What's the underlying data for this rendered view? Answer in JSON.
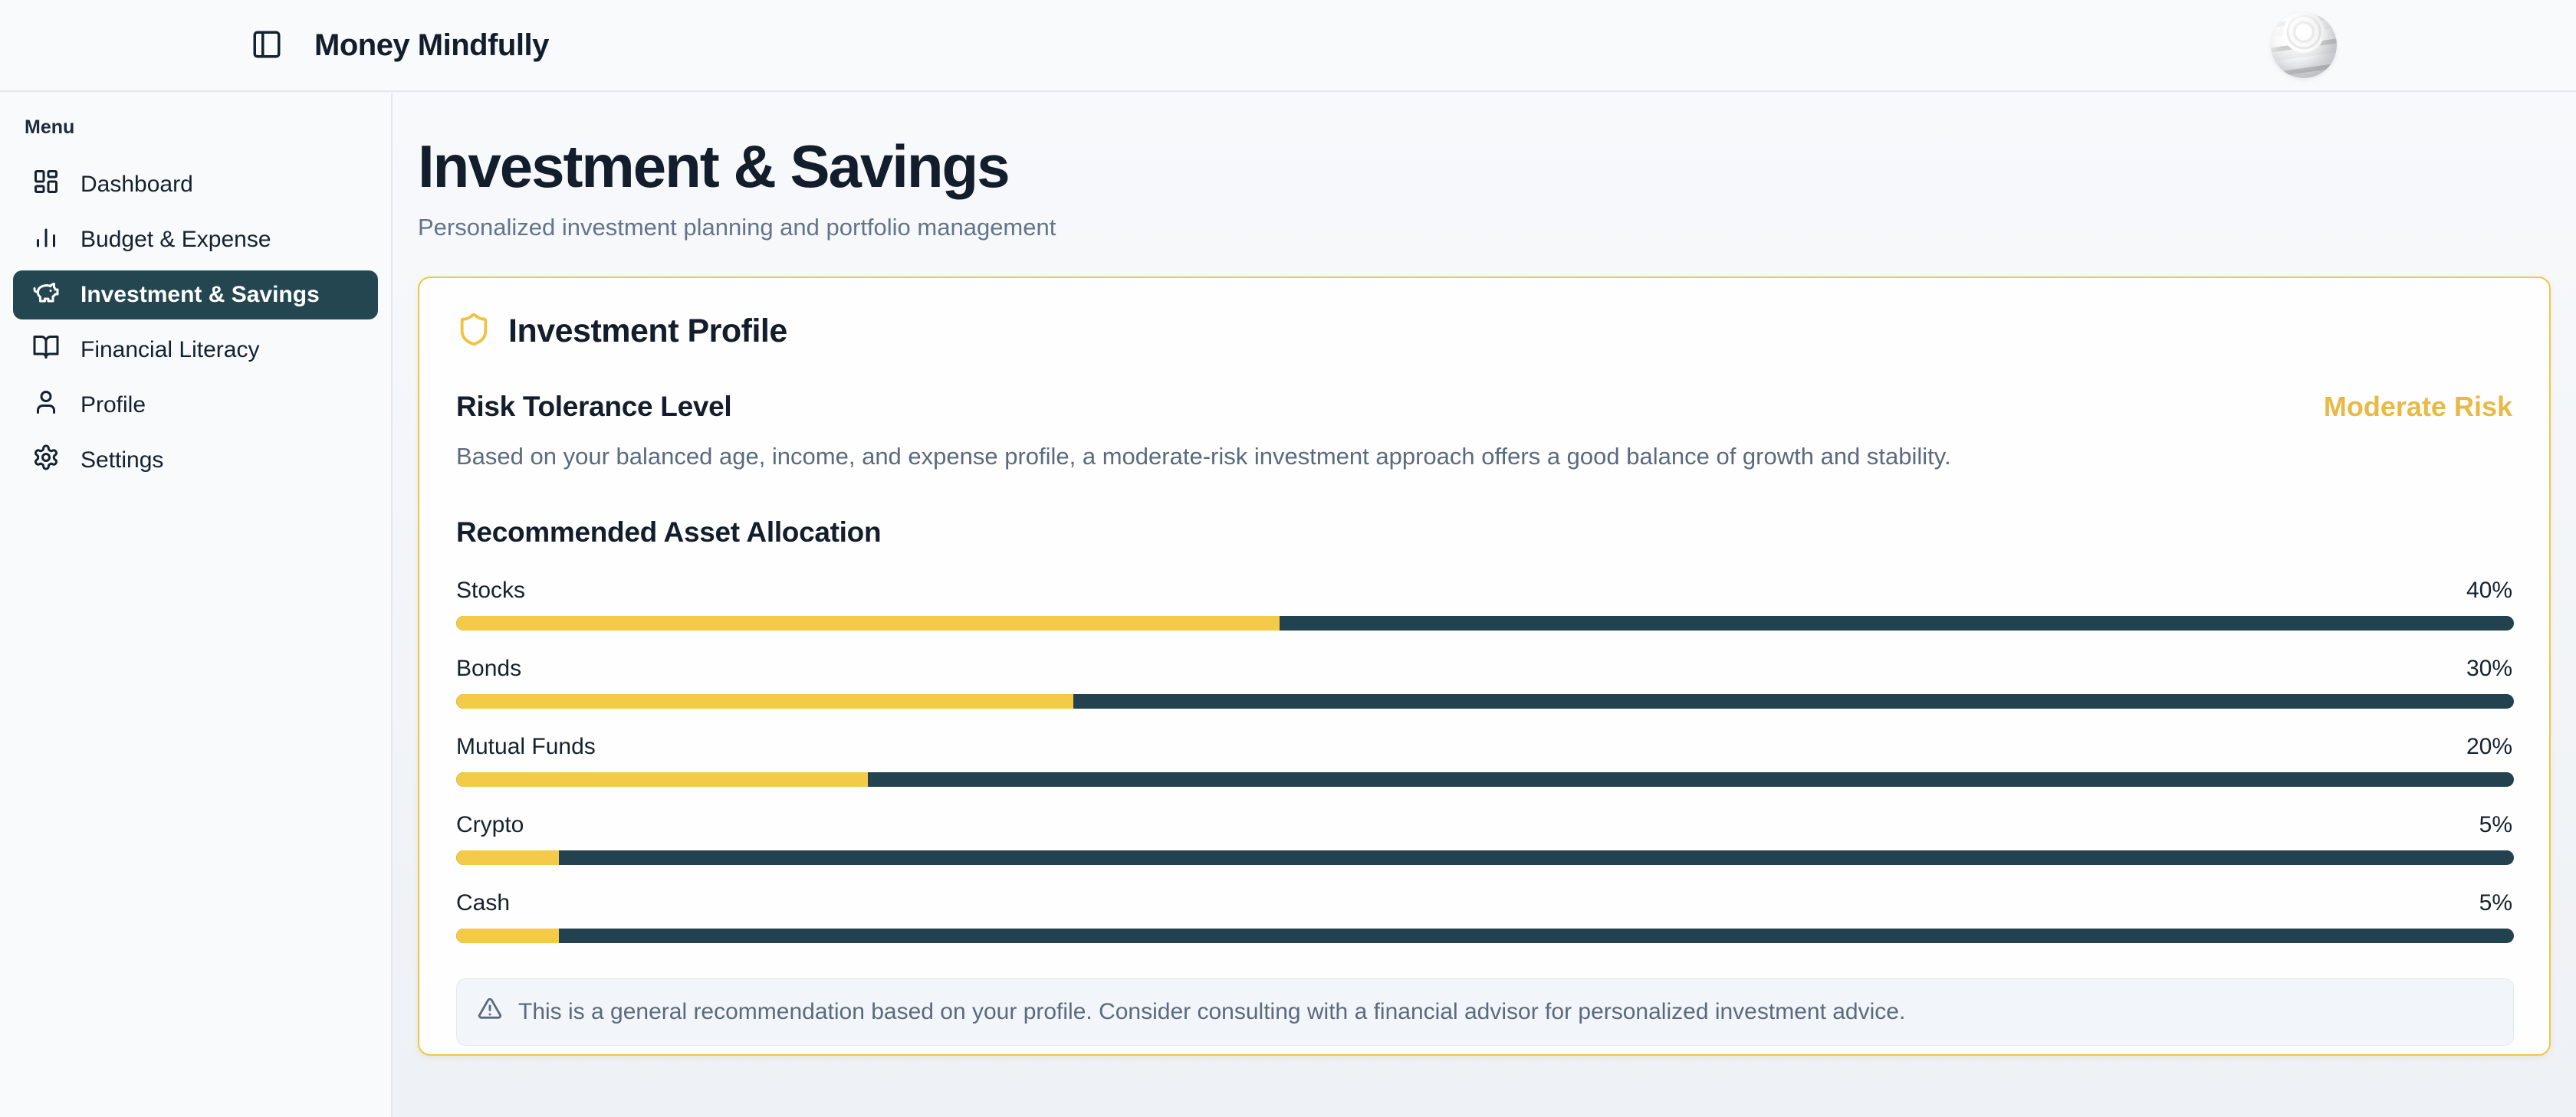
{
  "header": {
    "app_title": "Money Mindfully"
  },
  "sidebar": {
    "section_label": "Menu",
    "items": [
      {
        "label": "Dashboard"
      },
      {
        "label": "Budget & Expense"
      },
      {
        "label": "Investment & Savings"
      },
      {
        "label": "Financial Literacy"
      },
      {
        "label": "Profile"
      },
      {
        "label": "Settings"
      }
    ],
    "active_item": "Investment & Savings"
  },
  "page": {
    "title": "Investment & Savings",
    "subtitle": "Personalized investment planning and portfolio management"
  },
  "profile_card": {
    "title": "Investment Profile",
    "risk": {
      "heading": "Risk Tolerance Level",
      "level": "Moderate Risk",
      "description": "Based on your balanced age, income, and expense profile, a moderate-risk investment approach offers a good balance of growth and stability."
    },
    "allocation": {
      "heading": "Recommended Asset Allocation",
      "items": [
        {
          "label": "Stocks",
          "value": "40%",
          "percent": 40
        },
        {
          "label": "Bonds",
          "value": "30%",
          "percent": 30
        },
        {
          "label": "Mutual Funds",
          "value": "20%",
          "percent": 20
        },
        {
          "label": "Crypto",
          "value": "5%",
          "percent": 5
        },
        {
          "label": "Cash",
          "value": "5%",
          "percent": 5
        }
      ]
    },
    "disclaimer": "This is a general recommendation based on your profile. Consider consulting with a financial advisor for personalized investment advice."
  },
  "chart_data": {
    "type": "bar",
    "title": "Recommended Asset Allocation",
    "categories": [
      "Stocks",
      "Bonds",
      "Mutual Funds",
      "Crypto",
      "Cash"
    ],
    "values": [
      40,
      30,
      20,
      5,
      5
    ],
    "value_unit": "%",
    "xlim": [
      0,
      100
    ],
    "fill_color": "#f4cb49",
    "track_color": "#21424e"
  },
  "colors": {
    "accent_yellow": "#f4cb49",
    "gold_text": "#e9b944",
    "card_border": "#f0c64a",
    "dark_teal": "#21424e",
    "active_nav_bg": "#234651",
    "text_primary": "#131d2b",
    "text_muted": "#64748b",
    "border": "#e2e8f0"
  }
}
